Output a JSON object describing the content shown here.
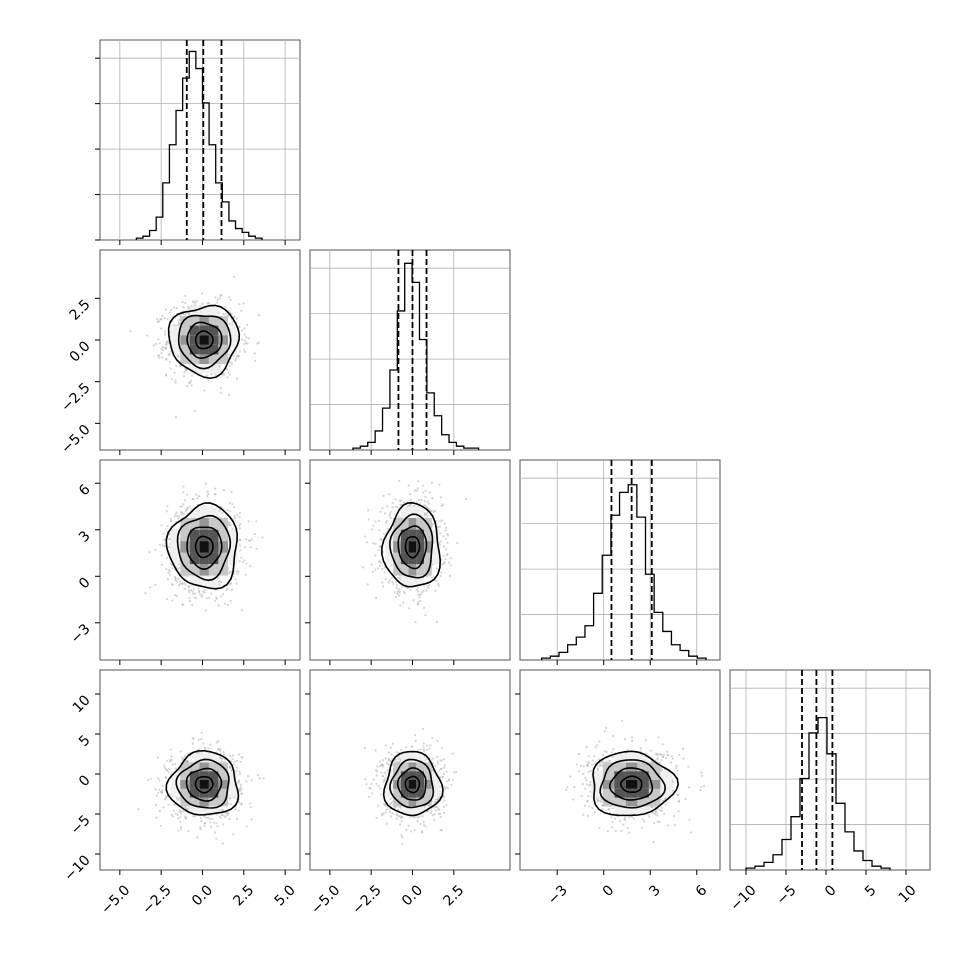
{
  "chart_data": {
    "type": "corner",
    "title": "",
    "grid": true,
    "n_params": 4,
    "params": [
      {
        "index": 0,
        "xlim": [
          -6.2,
          5.9
        ],
        "xticks": [
          -5.0,
          -2.5,
          0.0,
          2.5,
          5.0
        ],
        "xtick_labels": [
          "−5.0",
          "−2.5",
          "0.0",
          "2.5",
          "5.0"
        ]
      },
      {
        "index": 1,
        "xlim": [
          -6.2,
          5.9
        ],
        "xticks": [
          -5.0,
          -2.5,
          0.0,
          2.5
        ],
        "xtick_labels": [
          "−5.0",
          "−2.5",
          "0.0",
          "2.5"
        ],
        "ylim": [
          -6.6,
          5.4
        ],
        "yticks": [
          -5.0,
          -2.5,
          0.0,
          2.5
        ],
        "ytick_labels": [
          "−5.0",
          "−2.5",
          "0.0",
          "2.5"
        ]
      },
      {
        "index": 2,
        "xlim": [
          -5.4,
          7.5
        ],
        "xticks": [
          -3,
          0,
          3,
          6
        ],
        "xtick_labels": [
          "−3",
          "0",
          "3",
          "6"
        ],
        "ylim": [
          -5.4,
          7.5
        ],
        "yticks": [
          -3,
          0,
          3,
          6
        ],
        "ytick_labels": [
          "−3",
          "0",
          "3",
          "6"
        ]
      },
      {
        "index": 3,
        "xlim": [
          -12,
          13
        ],
        "xticks": [
          -10,
          -5,
          0,
          5,
          10
        ],
        "xtick_labels": [
          "−10",
          "−5",
          "0",
          "5",
          "10"
        ],
        "ylim": [
          -12,
          13
        ],
        "yticks": [
          -10,
          -5,
          0,
          5,
          10
        ],
        "ytick_labels": [
          "−10",
          "−5",
          "0",
          "5",
          "10"
        ]
      }
    ],
    "histograms": [
      {
        "param": 0,
        "quantiles": [
          -0.95,
          0.05,
          1.15
        ],
        "bin_edges": [
          -4.0,
          3.6
        ],
        "counts": [
          1,
          2,
          5,
          12,
          30,
          50,
          68,
          85,
          99,
          90,
          72,
          50,
          30,
          20,
          10,
          6,
          4,
          2,
          1
        ],
        "ymax": 100
      },
      {
        "param": 1,
        "quantiles": [
          -0.85,
          0.0,
          0.85
        ],
        "bin_edges": [
          -3.6,
          4.0
        ],
        "counts": [
          1,
          2,
          4,
          10,
          22,
          42,
          73,
          98,
          88,
          58,
          30,
          18,
          8,
          4,
          2,
          1,
          1
        ],
        "ymax": 100
      },
      {
        "param": 2,
        "quantiles": [
          0.5,
          1.8,
          3.1
        ],
        "bin_edges": [
          -4.0,
          6.6
        ],
        "counts": [
          1,
          2,
          4,
          8,
          12,
          18,
          35,
          55,
          76,
          88,
          92,
          75,
          45,
          25,
          15,
          8,
          5,
          2,
          1
        ],
        "ymax": 100
      },
      {
        "param": 3,
        "quantiles": [
          -3.0,
          -1.2,
          0.8
        ],
        "bin_edges": [
          -10.0,
          8.0
        ],
        "counts": [
          1,
          2,
          4,
          8,
          16,
          28,
          48,
          72,
          80,
          61,
          35,
          20,
          10,
          5,
          2,
          1
        ],
        "ymax": 100
      }
    ],
    "panels_2d": [
      {
        "x": 0,
        "y": 1,
        "center": [
          0.1,
          0.0
        ],
        "sigma": [
          1.05,
          1.05
        ]
      },
      {
        "x": 0,
        "y": 2,
        "center": [
          0.1,
          1.9
        ],
        "sigma": [
          1.05,
          1.35
        ]
      },
      {
        "x": 1,
        "y": 2,
        "center": [
          0.0,
          1.9
        ],
        "sigma": [
          0.85,
          1.35
        ]
      },
      {
        "x": 0,
        "y": 3,
        "center": [
          0.1,
          -1.3
        ],
        "sigma": [
          1.05,
          2.0
        ]
      },
      {
        "x": 1,
        "y": 3,
        "center": [
          0.0,
          -1.3
        ],
        "sigma": [
          0.85,
          2.0
        ]
      },
      {
        "x": 2,
        "y": 3,
        "center": [
          1.8,
          -1.3
        ],
        "sigma": [
          1.35,
          2.0
        ]
      }
    ],
    "contour_levels_sigma": [
      0.5,
      1.0,
      1.5,
      2.0
    ],
    "colors": {
      "hist": "#000000",
      "quantile_line": "#000000",
      "contour": "#000000",
      "scatter": "#b0b0b0",
      "density": [
        "#f0f0f0",
        "#c8c8c8",
        "#969696",
        "#555555",
        "#111111"
      ],
      "grid": "#b0b0b0"
    }
  }
}
